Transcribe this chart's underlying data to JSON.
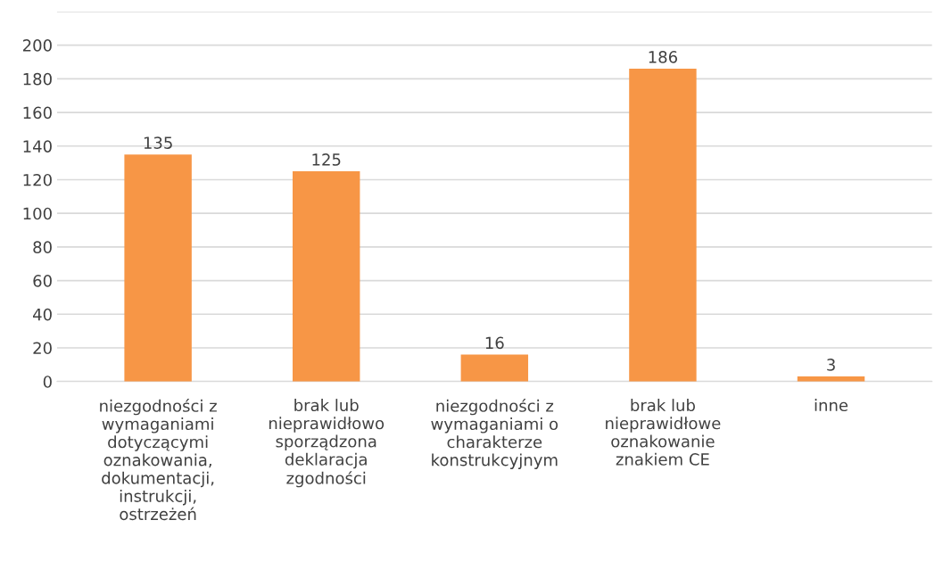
{
  "chart_data": {
    "type": "bar",
    "categories": [
      "niezgodności z\nwymaganiami\ndotyczącymi\noznakowania,\ndokumentacji,\ninstrukcji,\nostrzeżeń",
      "brak lub\nnieprawidłowo\nsporządzona\ndeklaracja\nzgodności",
      "niezgodności z\nwymaganiami o\ncharakterze\nkonstrukcyjnym",
      "brak lub\nnieprawidłowe\noznakowanie\nznakiem CE",
      "inne"
    ],
    "values": [
      135,
      125,
      16,
      186,
      3
    ],
    "color": "#f79646",
    "ylim": [
      0,
      220
    ],
    "yticks": [
      0,
      20,
      40,
      60,
      80,
      100,
      120,
      140,
      160,
      180,
      200,
      {
        "value": 220,
        "label": null
      }
    ],
    "grid": "y",
    "data_labels": true
  }
}
